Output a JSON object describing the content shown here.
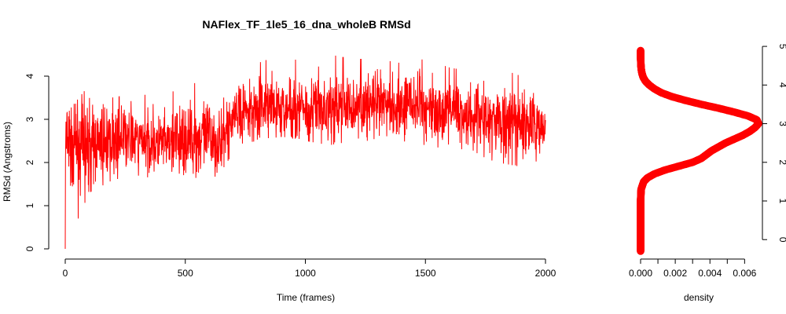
{
  "chart_data": [
    {
      "type": "line",
      "title": "NAFlex_TF_1le5_16_dna_wholeB RMSd",
      "xlabel": "Time (frames)",
      "ylabel": "RMSd (Angstroms)",
      "xlim": [
        0,
        2000
      ],
      "ylim": [
        0,
        4.6
      ],
      "xticks": [
        0,
        500,
        1000,
        1500,
        2000
      ],
      "yticks": [
        0,
        1,
        2,
        3,
        4
      ],
      "grid": false,
      "color": "#ff0000",
      "series": [
        {
          "x": [
            0,
            100,
            200,
            300,
            400,
            500,
            600,
            650,
            700,
            800,
            900,
            1000,
            1100,
            1200,
            1300,
            1400,
            1500,
            1600,
            1700,
            1800,
            1900,
            2000
          ],
          "y": [
            2.4,
            2.4,
            2.5,
            2.55,
            2.4,
            2.5,
            2.6,
            2.4,
            3.1,
            3.3,
            3.2,
            3.3,
            3.25,
            3.3,
            3.3,
            3.35,
            3.3,
            3.2,
            3.1,
            2.9,
            2.9,
            2.9
          ],
          "min": [
            0.0,
            1.3,
            1.6,
            1.7,
            1.6,
            1.6,
            1.7,
            1.5,
            2.4,
            2.5,
            2.6,
            2.5,
            2.4,
            2.5,
            2.4,
            2.5,
            2.4,
            2.3,
            2.2,
            2.0,
            1.9,
            2.1
          ],
          "max": [
            3.1,
            3.8,
            3.5,
            3.6,
            3.5,
            3.8,
            3.9,
            3.5,
            4.0,
            4.3,
            4.5,
            4.3,
            4.5,
            4.4,
            4.4,
            4.3,
            4.4,
            4.2,
            4.1,
            4.2,
            4.0,
            3.7
          ]
        }
      ]
    },
    {
      "type": "scatter",
      "xlabel": "density",
      "xlim": [
        0,
        0.0068
      ],
      "ylim": [
        -0.3,
        4.9
      ],
      "xticks": [
        0.0,
        0.002,
        0.004,
        0.006
      ],
      "xtick_labels": [
        "0.000",
        "0.002",
        "0.004",
        "0.006"
      ],
      "yticks": [
        0,
        1,
        2,
        3,
        4,
        5
      ],
      "y_axis_side": "right",
      "color": "#ff0000",
      "density_curve": {
        "y": [
          -0.3,
          0.5,
          1.0,
          1.3,
          1.5,
          1.6,
          1.7,
          1.8,
          1.9,
          2.0,
          2.1,
          2.2,
          2.3,
          2.4,
          2.5,
          2.6,
          2.7,
          2.8,
          2.9,
          3.0,
          3.1,
          3.2,
          3.3,
          3.4,
          3.5,
          3.6,
          3.7,
          3.8,
          3.9,
          4.0,
          4.1,
          4.2,
          4.3,
          4.4,
          4.5,
          4.6,
          4.7,
          4.9
        ],
        "density": [
          0.0,
          0.0,
          0.0,
          3e-05,
          0.00018,
          0.0004,
          0.0008,
          0.0014,
          0.0022,
          0.003,
          0.0035,
          0.0038,
          0.0041,
          0.0045,
          0.0049,
          0.0054,
          0.0059,
          0.0063,
          0.0066,
          0.0068,
          0.0067,
          0.0062,
          0.0054,
          0.0045,
          0.0035,
          0.0026,
          0.0018,
          0.0012,
          0.0008,
          0.0005,
          0.00028,
          0.00015,
          8e-05,
          4e-05,
          2e-05,
          1e-05,
          0.0,
          0.0
        ]
      }
    }
  ]
}
